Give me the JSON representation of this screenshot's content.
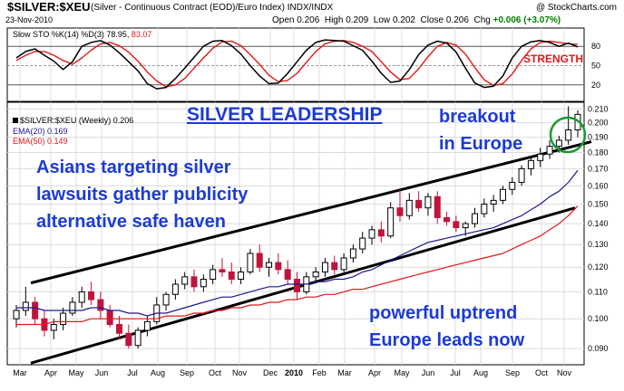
{
  "header": {
    "symbol": "$SILVER:$XEU",
    "description": "(Silver - Continuous Contract (EOD)/Euro Index)",
    "exchange": "INDX/INDX",
    "copyright": "@ StockCharts.com",
    "date": "23-Nov-2010",
    "open_label": "Open",
    "open": "0.206",
    "high_label": "High",
    "high": "0.209",
    "low_label": "Low",
    "low": "0.202",
    "close_label": "Close",
    "close": "0.206",
    "chg_label": "Chg",
    "chg": "+0.006 (+3.07%)"
  },
  "sto_panel": {
    "legend": "Slow STO %K(14) %D(3) 78.95,",
    "d_value": "83.07",
    "strength_label": "STRENGTH",
    "levels": [
      "80",
      "50",
      "20"
    ]
  },
  "price_panel": {
    "legend": "$SILVER:$XEU (Weekly) 0.206",
    "ema20_legend": "EMA(20) 0.169",
    "ema50_legend": "EMA(50) 0.149"
  },
  "annotations": {
    "title": "SILVER LEADERSHIP",
    "breakout": [
      "breakout",
      "in Europe"
    ],
    "left_text": [
      "Asians targeting silver",
      "lawsuits gather publicity",
      "alternative safe haven"
    ],
    "right_text": [
      "powerful uptrend",
      "Europe leads now"
    ]
  },
  "colors": {
    "accent": "#1c3bd4",
    "up_candle": "#000000",
    "down_candle": "#c0143c",
    "ema20": "#1a1a8c",
    "ema50": "#e01818",
    "sto_k": "#000000",
    "sto_d": "#e01818",
    "circle": "#1a9a30",
    "strength": "#e01818"
  },
  "chart_data": [
    {
      "type": "line",
      "title": "Slow STO %K(14) %D(3)",
      "ylim": [
        0,
        100
      ],
      "reference_levels": [
        20,
        50,
        80
      ],
      "series": [
        {
          "name": "%K",
          "values": [
            62,
            72,
            76,
            66,
            57,
            44,
            56,
            80,
            86,
            89,
            82,
            70,
            56,
            42,
            22,
            14,
            16,
            30,
            46,
            63,
            80,
            88,
            89,
            81,
            68,
            50,
            34,
            22,
            23,
            38,
            56,
            74,
            86,
            90,
            89,
            88,
            81,
            74,
            57,
            38,
            24,
            26,
            44,
            67,
            82,
            88,
            85,
            71,
            46,
            23,
            16,
            18,
            34,
            62,
            80,
            87,
            89,
            86,
            80,
            85,
            79
          ]
        },
        {
          "name": "%D",
          "values": [
            58,
            66,
            72,
            72,
            66,
            58,
            52,
            62,
            74,
            84,
            86,
            81,
            71,
            57,
            40,
            26,
            17,
            20,
            30,
            46,
            62,
            77,
            87,
            88,
            81,
            67,
            52,
            35,
            25,
            27,
            38,
            55,
            72,
            84,
            88,
            89,
            86,
            80,
            72,
            56,
            40,
            28,
            30,
            45,
            64,
            80,
            86,
            82,
            68,
            47,
            28,
            19,
            22,
            37,
            58,
            76,
            86,
            88,
            86,
            84,
            83
          ]
        }
      ]
    },
    {
      "type": "line",
      "title": "$SILVER:$XEU (Weekly) candlesticks",
      "x_ticks": [
        "Mar",
        "Apr",
        "May",
        "Jun",
        "Jul",
        "Aug",
        "Sep",
        "Oct",
        "Nov",
        "Dec",
        "2010",
        "Feb",
        "Mar",
        "Apr",
        "May",
        "Jun",
        "Jul",
        "Aug",
        "Sep",
        "Oct",
        "Nov"
      ],
      "y_ticks": [
        "0.090",
        "0.100",
        "0.110",
        "0.120",
        "0.130",
        "0.140",
        "0.150",
        "0.160",
        "0.170",
        "0.180",
        "0.190",
        "0.200",
        "0.210"
      ],
      "y_scale": "log",
      "ylim": [
        0.085,
        0.215
      ],
      "ohlc": [
        [
          0.1,
          0.105,
          0.097,
          0.103
        ],
        [
          0.103,
          0.112,
          0.101,
          0.106
        ],
        [
          0.106,
          0.108,
          0.098,
          0.1
        ],
        [
          0.1,
          0.103,
          0.094,
          0.096
        ],
        [
          0.096,
          0.1,
          0.093,
          0.098
        ],
        [
          0.098,
          0.104,
          0.096,
          0.102
        ],
        [
          0.102,
          0.108,
          0.101,
          0.106
        ],
        [
          0.106,
          0.112,
          0.104,
          0.11
        ],
        [
          0.11,
          0.114,
          0.105,
          0.107
        ],
        [
          0.107,
          0.11,
          0.1,
          0.103
        ],
        [
          0.103,
          0.105,
          0.097,
          0.098
        ],
        [
          0.098,
          0.101,
          0.093,
          0.095
        ],
        [
          0.095,
          0.098,
          0.09,
          0.091
        ],
        [
          0.091,
          0.097,
          0.09,
          0.096
        ],
        [
          0.096,
          0.101,
          0.094,
          0.099
        ],
        [
          0.099,
          0.108,
          0.098,
          0.105
        ],
        [
          0.105,
          0.11,
          0.103,
          0.109
        ],
        [
          0.109,
          0.115,
          0.107,
          0.113
        ],
        [
          0.113,
          0.118,
          0.111,
          0.116
        ],
        [
          0.116,
          0.119,
          0.11,
          0.112
        ],
        [
          0.112,
          0.117,
          0.11,
          0.115
        ],
        [
          0.115,
          0.121,
          0.113,
          0.119
        ],
        [
          0.119,
          0.124,
          0.116,
          0.118
        ],
        [
          0.118,
          0.122,
          0.113,
          0.115
        ],
        [
          0.115,
          0.12,
          0.113,
          0.118
        ],
        [
          0.118,
          0.128,
          0.117,
          0.126
        ],
        [
          0.126,
          0.13,
          0.118,
          0.12
        ],
        [
          0.12,
          0.124,
          0.116,
          0.122
        ],
        [
          0.122,
          0.126,
          0.117,
          0.119
        ],
        [
          0.119,
          0.123,
          0.113,
          0.115
        ],
        [
          0.115,
          0.118,
          0.107,
          0.11
        ],
        [
          0.11,
          0.118,
          0.109,
          0.116
        ],
        [
          0.116,
          0.12,
          0.114,
          0.118
        ],
        [
          0.118,
          0.124,
          0.116,
          0.122
        ],
        [
          0.122,
          0.125,
          0.117,
          0.119
        ],
        [
          0.119,
          0.126,
          0.118,
          0.124
        ],
        [
          0.124,
          0.13,
          0.122,
          0.128
        ],
        [
          0.128,
          0.136,
          0.126,
          0.133
        ],
        [
          0.133,
          0.139,
          0.13,
          0.137
        ],
        [
          0.137,
          0.141,
          0.131,
          0.134
        ],
        [
          0.134,
          0.151,
          0.133,
          0.148
        ],
        [
          0.148,
          0.158,
          0.141,
          0.144
        ],
        [
          0.144,
          0.156,
          0.142,
          0.152
        ],
        [
          0.152,
          0.157,
          0.146,
          0.148
        ],
        [
          0.148,
          0.156,
          0.144,
          0.154
        ],
        [
          0.154,
          0.157,
          0.14,
          0.143
        ],
        [
          0.143,
          0.146,
          0.139,
          0.141
        ],
        [
          0.141,
          0.144,
          0.136,
          0.138
        ],
        [
          0.138,
          0.141,
          0.134,
          0.14
        ],
        [
          0.14,
          0.148,
          0.138,
          0.145
        ],
        [
          0.145,
          0.153,
          0.143,
          0.15
        ],
        [
          0.15,
          0.155,
          0.146,
          0.152
        ],
        [
          0.152,
          0.16,
          0.15,
          0.158
        ],
        [
          0.158,
          0.165,
          0.155,
          0.162
        ],
        [
          0.162,
          0.172,
          0.16,
          0.17
        ],
        [
          0.17,
          0.178,
          0.166,
          0.175
        ],
        [
          0.175,
          0.183,
          0.171,
          0.179
        ],
        [
          0.179,
          0.188,
          0.176,
          0.184
        ],
        [
          0.184,
          0.191,
          0.18,
          0.188
        ],
        [
          0.188,
          0.212,
          0.185,
          0.195
        ],
        [
          0.195,
          0.209,
          0.19,
          0.206
        ]
      ],
      "series": [
        {
          "name": "EMA(20)",
          "values": [
            0.104,
            0.104,
            0.104,
            0.103,
            0.103,
            0.103,
            0.103,
            0.103,
            0.104,
            0.104,
            0.103,
            0.103,
            0.102,
            0.102,
            0.101,
            0.102,
            0.102,
            0.103,
            0.104,
            0.105,
            0.106,
            0.107,
            0.108,
            0.108,
            0.109,
            0.11,
            0.111,
            0.112,
            0.112,
            0.113,
            0.113,
            0.113,
            0.114,
            0.114,
            0.115,
            0.115,
            0.116,
            0.118,
            0.119,
            0.121,
            0.123,
            0.125,
            0.127,
            0.129,
            0.131,
            0.132,
            0.133,
            0.134,
            0.135,
            0.136,
            0.137,
            0.138,
            0.14,
            0.142,
            0.144,
            0.147,
            0.15,
            0.154,
            0.157,
            0.162,
            0.169
          ]
        },
        {
          "name": "EMA(50)",
          "values": [
            0.098,
            0.098,
            0.098,
            0.098,
            0.099,
            0.099,
            0.099,
            0.099,
            0.1,
            0.1,
            0.1,
            0.1,
            0.1,
            0.1,
            0.1,
            0.1,
            0.101,
            0.101,
            0.101,
            0.102,
            0.102,
            0.103,
            0.103,
            0.104,
            0.104,
            0.105,
            0.105,
            0.106,
            0.106,
            0.107,
            0.107,
            0.108,
            0.108,
            0.109,
            0.109,
            0.11,
            0.111,
            0.111,
            0.112,
            0.113,
            0.114,
            0.115,
            0.116,
            0.117,
            0.118,
            0.119,
            0.12,
            0.121,
            0.122,
            0.123,
            0.124,
            0.125,
            0.126,
            0.128,
            0.13,
            0.132,
            0.134,
            0.137,
            0.14,
            0.144,
            0.149
          ]
        }
      ]
    }
  ]
}
